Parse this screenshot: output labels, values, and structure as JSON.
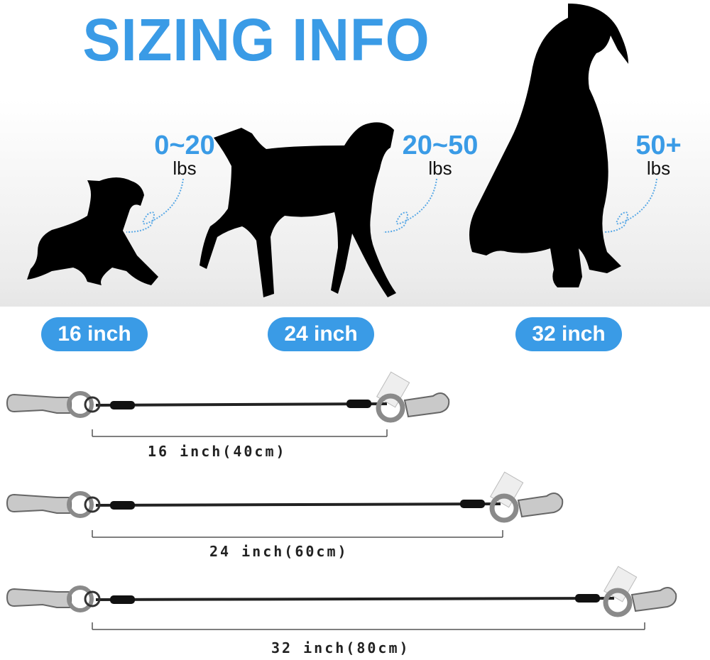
{
  "title": "SIZING INFO",
  "accent_color": "#3a9be6",
  "sizes": [
    {
      "weight": "0~20",
      "unit": "lbs",
      "badge": "16 inch",
      "length_label": "16 inch(40cm)"
    },
    {
      "weight": "20~50",
      "unit": "lbs",
      "badge": "24 inch",
      "length_label": "24 inch(60cm)"
    },
    {
      "weight": "50+",
      "unit": "lbs",
      "badge": "32 inch",
      "length_label": "32 inch(80cm)"
    }
  ]
}
